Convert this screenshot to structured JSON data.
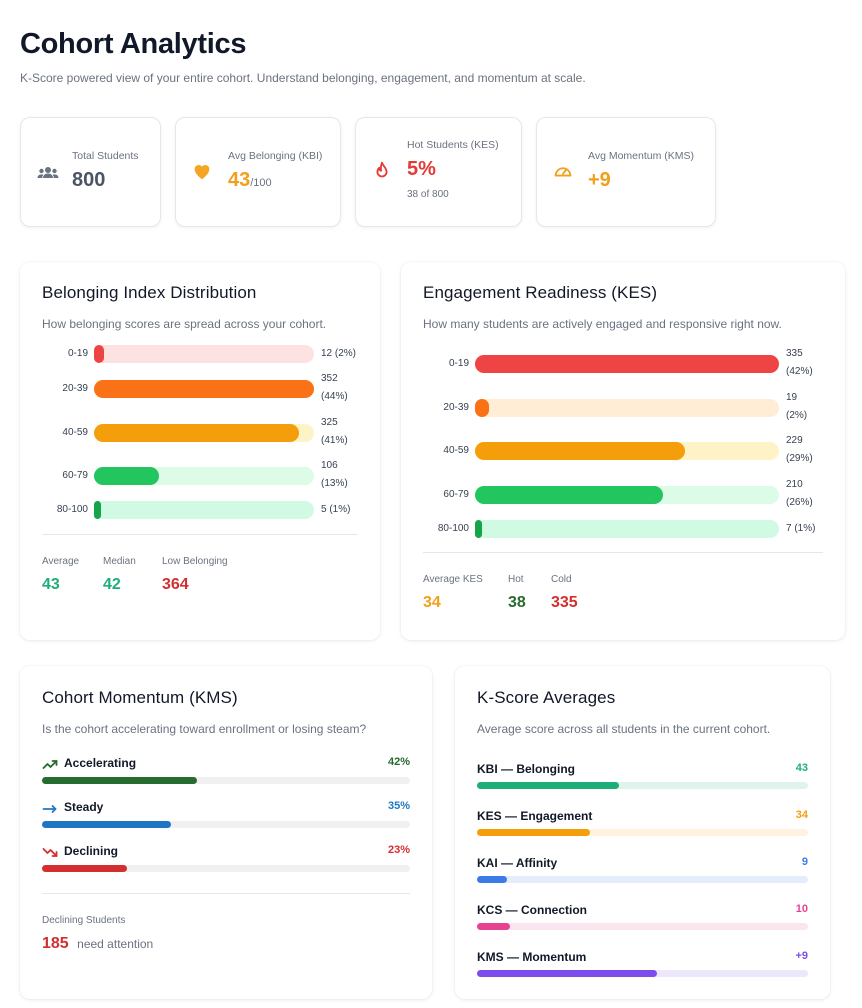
{
  "header": {
    "title": "Cohort Analytics",
    "subtitle": "K-Score powered view of your entire cohort. Understand belonging, engagement, and momentum at scale."
  },
  "stats": {
    "total": {
      "label": "Total Students",
      "value": "800",
      "icon": "users-icon"
    },
    "belonging": {
      "label": "Avg Belonging (KBI)",
      "value": "43",
      "suffix": "/100",
      "icon": "heart-icon"
    },
    "hot": {
      "label": "Hot Students (KES)",
      "value": "5%",
      "sub": "38 of 800",
      "icon": "flame-icon"
    },
    "momentum": {
      "label": "Avg Momentum (KMS)",
      "value": "+9",
      "icon": "gauge-icon"
    }
  },
  "belonging": {
    "title": "Belonging Index Distribution",
    "desc": "How belonging scores are spread across your cohort.",
    "rows": [
      {
        "label": "0-19",
        "count_line1": "12 (2%)",
        "count_line2": "",
        "pct": 2
      },
      {
        "label": "20-39",
        "count_line1": "352",
        "count_line2": "(44%)",
        "pct": 44
      },
      {
        "label": "40-59",
        "count_line1": "325",
        "count_line2": "(41%)",
        "pct": 41
      },
      {
        "label": "60-79",
        "count_line1": "106",
        "count_line2": "(13%)",
        "pct": 13
      },
      {
        "label": "80-100",
        "count_line1": "5 (1%)",
        "count_line2": "",
        "pct": 1
      }
    ],
    "metrics": [
      {
        "label": "Average",
        "value": "43"
      },
      {
        "label": "Median",
        "value": "42"
      },
      {
        "label": "Low Belonging",
        "value": "364"
      }
    ]
  },
  "engagement": {
    "title": "Engagement Readiness (KES)",
    "desc": "How many students are actively engaged and responsive right now.",
    "rows": [
      {
        "label": "0-19",
        "count_line1": "335",
        "count_line2": "(42%)",
        "pct": 42
      },
      {
        "label": "20-39",
        "count_line1": "19",
        "count_line2": "(2%)",
        "pct": 2
      },
      {
        "label": "40-59",
        "count_line1": "229",
        "count_line2": "(29%)",
        "pct": 29
      },
      {
        "label": "60-79",
        "count_line1": "210",
        "count_line2": "(26%)",
        "pct": 26
      },
      {
        "label": "80-100",
        "count_line1": "7 (1%)",
        "count_line2": "",
        "pct": 1
      }
    ],
    "metrics": [
      {
        "label": "Average KES",
        "value": "34"
      },
      {
        "label": "Hot",
        "value": "38"
      },
      {
        "label": "Cold",
        "value": "335"
      }
    ]
  },
  "momentum": {
    "title": "Cohort Momentum (KMS)",
    "desc": "Is the cohort accelerating toward enrollment or losing steam?",
    "rows": [
      {
        "label": "Accelerating",
        "pct_label": "42%",
        "pct": 42,
        "icon": "trending-up-icon",
        "color": "#276b2e"
      },
      {
        "label": "Steady",
        "pct_label": "35%",
        "pct": 35,
        "icon": "arrow-right-icon",
        "color": "#1f77c4"
      },
      {
        "label": "Declining",
        "pct_label": "23%",
        "pct": 23,
        "icon": "trending-down-icon",
        "color": "#d32f2f"
      }
    ],
    "declining_label": "Declining Students",
    "declining_value": "185",
    "declining_note": "need attention"
  },
  "kscores": {
    "title": "K-Score Averages",
    "desc": "Average score across all students in the current cohort.",
    "rows": [
      {
        "label": "KBI — Belonging",
        "value": "43",
        "pct": 43,
        "color": "#1fae7a",
        "track": "#dff5ec"
      },
      {
        "label": "KES — Engagement",
        "value": "34",
        "pct": 34,
        "color": "#f59e0b",
        "track": "#fff2de"
      },
      {
        "label": "KAI — Affinity",
        "value": "9",
        "pct": 9,
        "color": "#3b7be8",
        "track": "#e4edfb"
      },
      {
        "label": "KCS — Connection",
        "value": "10",
        "pct": 10,
        "color": "#e84393",
        "track": "#fbe6ef"
      },
      {
        "label": "KMS — Momentum",
        "value": "+9",
        "pct": 54.5,
        "color": "#7c4dea",
        "track": "#ece7fb"
      }
    ]
  }
}
